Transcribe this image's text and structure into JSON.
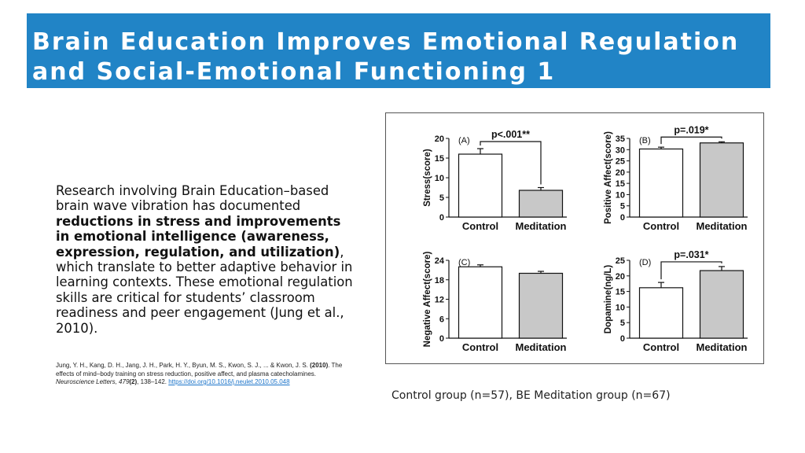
{
  "slide": {
    "title_line1": "Brain Education Improves Emotional Regulation",
    "title_line2": "and Social-Emotional Functioning 1",
    "body": {
      "p1": "Research involving Brain Education–based brain wave vibration has documented ",
      "bold": "reductions in stress and improvements in emotional intelligence (awareness, expression, regulation, and utilization)",
      "p2": ", which translate to better adaptive behavior in learning contexts. These emotional regulation skills are critical for students’ classroom readiness and peer engagement (Jung et al., 2010)."
    },
    "reference": {
      "authors": "Jung, Y. H., Kang, D. H., Jang, J. H., Park, H. Y., Byun, M. S., Kwon, S. J., ... & Kwon, J. S. ",
      "year": "(2010)",
      "title": ". The effects of mind–body training on stress reduction, positive affect, and plasma catecholamines. ",
      "journal": "Neuroscience Letters, 479",
      "issue": "(2)",
      "pages": ", 138–142. ",
      "link": "https://doi.org/10.1016/j.neulet.2010.05.048"
    },
    "caption": "Control group (n=57), BE Meditation group (n=67)"
  },
  "colors": {
    "title_bg": "#2184c6",
    "bar_meditation": "#c8c8c8",
    "bar_control": "#ffffff"
  },
  "chart_data": [
    {
      "type": "bar",
      "panel": "(A)",
      "ylabel": "Stress(score)",
      "categories": [
        "Control",
        "Meditation"
      ],
      "values": [
        16,
        6.8
      ],
      "errors": [
        1.4,
        0.7
      ],
      "ylim": [
        0,
        20
      ],
      "yticks": [
        0,
        5,
        10,
        15,
        20
      ],
      "annotation": "p<.001**"
    },
    {
      "type": "bar",
      "panel": "(B)",
      "ylabel": "Positive Affect(score)",
      "categories": [
        "Control",
        "Meditation"
      ],
      "values": [
        30.3,
        33
      ],
      "errors": [
        0.8,
        0.5
      ],
      "ylim": [
        0,
        35
      ],
      "yticks": [
        0,
        5,
        10,
        15,
        20,
        25,
        30,
        35
      ],
      "annotation": "p=.019*"
    },
    {
      "type": "bar",
      "panel": "(C)",
      "ylabel": "Negative Affect(score)",
      "categories": [
        "Control",
        "Meditation"
      ],
      "values": [
        22,
        20
      ],
      "errors": [
        0.6,
        0.6
      ],
      "ylim": [
        0,
        24
      ],
      "yticks": [
        0,
        6,
        12,
        18,
        24
      ],
      "annotation": ""
    },
    {
      "type": "bar",
      "panel": "(D)",
      "ylabel": "Dopamine(ng/L)",
      "categories": [
        "Control",
        "Meditation"
      ],
      "values": [
        16.2,
        21.7
      ],
      "errors": [
        1.7,
        1.3
      ],
      "ylim": [
        0,
        25
      ],
      "yticks": [
        0,
        5,
        10,
        15,
        20,
        25
      ],
      "annotation": "p=.031*"
    }
  ]
}
